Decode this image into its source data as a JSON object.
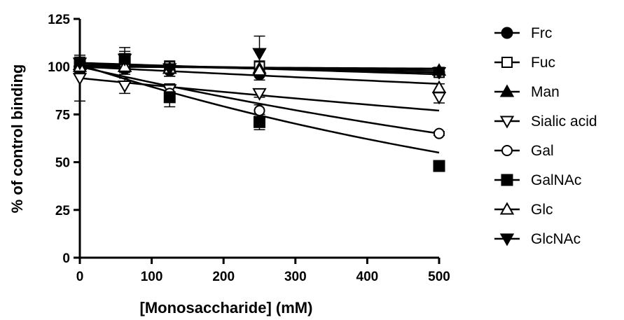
{
  "chart_data": {
    "type": "scatter",
    "title": "",
    "xlabel": "[Monosaccharide] (mM)",
    "ylabel": "% of control binding",
    "xlim": [
      0,
      500
    ],
    "ylim": [
      0,
      125
    ],
    "xticks": [
      "0",
      "100",
      "200",
      "300",
      "400",
      "500"
    ],
    "yticks": [
      "0",
      "25",
      "50",
      "75",
      "100",
      "125"
    ],
    "grid": false,
    "legend_position": "right",
    "x": [
      0,
      62.5,
      125,
      250,
      500
    ],
    "series": [
      {
        "name": "Frc",
        "marker": "circle-filled",
        "values": [
          101,
          99,
          98,
          96,
          97
        ],
        "err": [
          3,
          3,
          3,
          3,
          1
        ],
        "fit_end": 97
      },
      {
        "name": "Fuc",
        "marker": "square-open",
        "values": [
          100,
          100,
          100,
          100,
          97
        ],
        "err": [
          2,
          2,
          2,
          3,
          1
        ],
        "fit_end": 99
      },
      {
        "name": "Man",
        "marker": "triangle-up-filled",
        "values": [
          101,
          100,
          99,
          99,
          98
        ],
        "err": [
          2,
          2,
          2,
          2,
          1
        ],
        "fit_end": 98
      },
      {
        "name": "Sialic acid",
        "marker": "triangle-down-open",
        "values": [
          94,
          90,
          88,
          86,
          84
        ],
        "err": [
          12,
          4,
          3,
          2,
          3
        ],
        "fit_end": 77
      },
      {
        "name": "Gal",
        "marker": "circle-open",
        "values": [
          100,
          100,
          86,
          77,
          65
        ],
        "err": [
          3,
          3,
          4,
          3,
          1
        ],
        "fit_end": 65
      },
      {
        "name": "GalNAc",
        "marker": "square-filled",
        "values": [
          101,
          104,
          84,
          71,
          48
        ],
        "err": [
          3,
          4,
          5,
          4,
          1
        ],
        "fit_end": 55
      },
      {
        "name": "Glc",
        "marker": "triangle-up-open",
        "values": [
          100,
          100,
          99,
          98,
          89
        ],
        "err": [
          2,
          2,
          2,
          2,
          2
        ],
        "fit_end": 91
      },
      {
        "name": "GlcNAc",
        "marker": "triangle-down-filled",
        "values": [
          102,
          104,
          99,
          107,
          97
        ],
        "err": [
          3,
          6,
          4,
          9,
          1
        ],
        "fit_end": 96
      }
    ]
  }
}
